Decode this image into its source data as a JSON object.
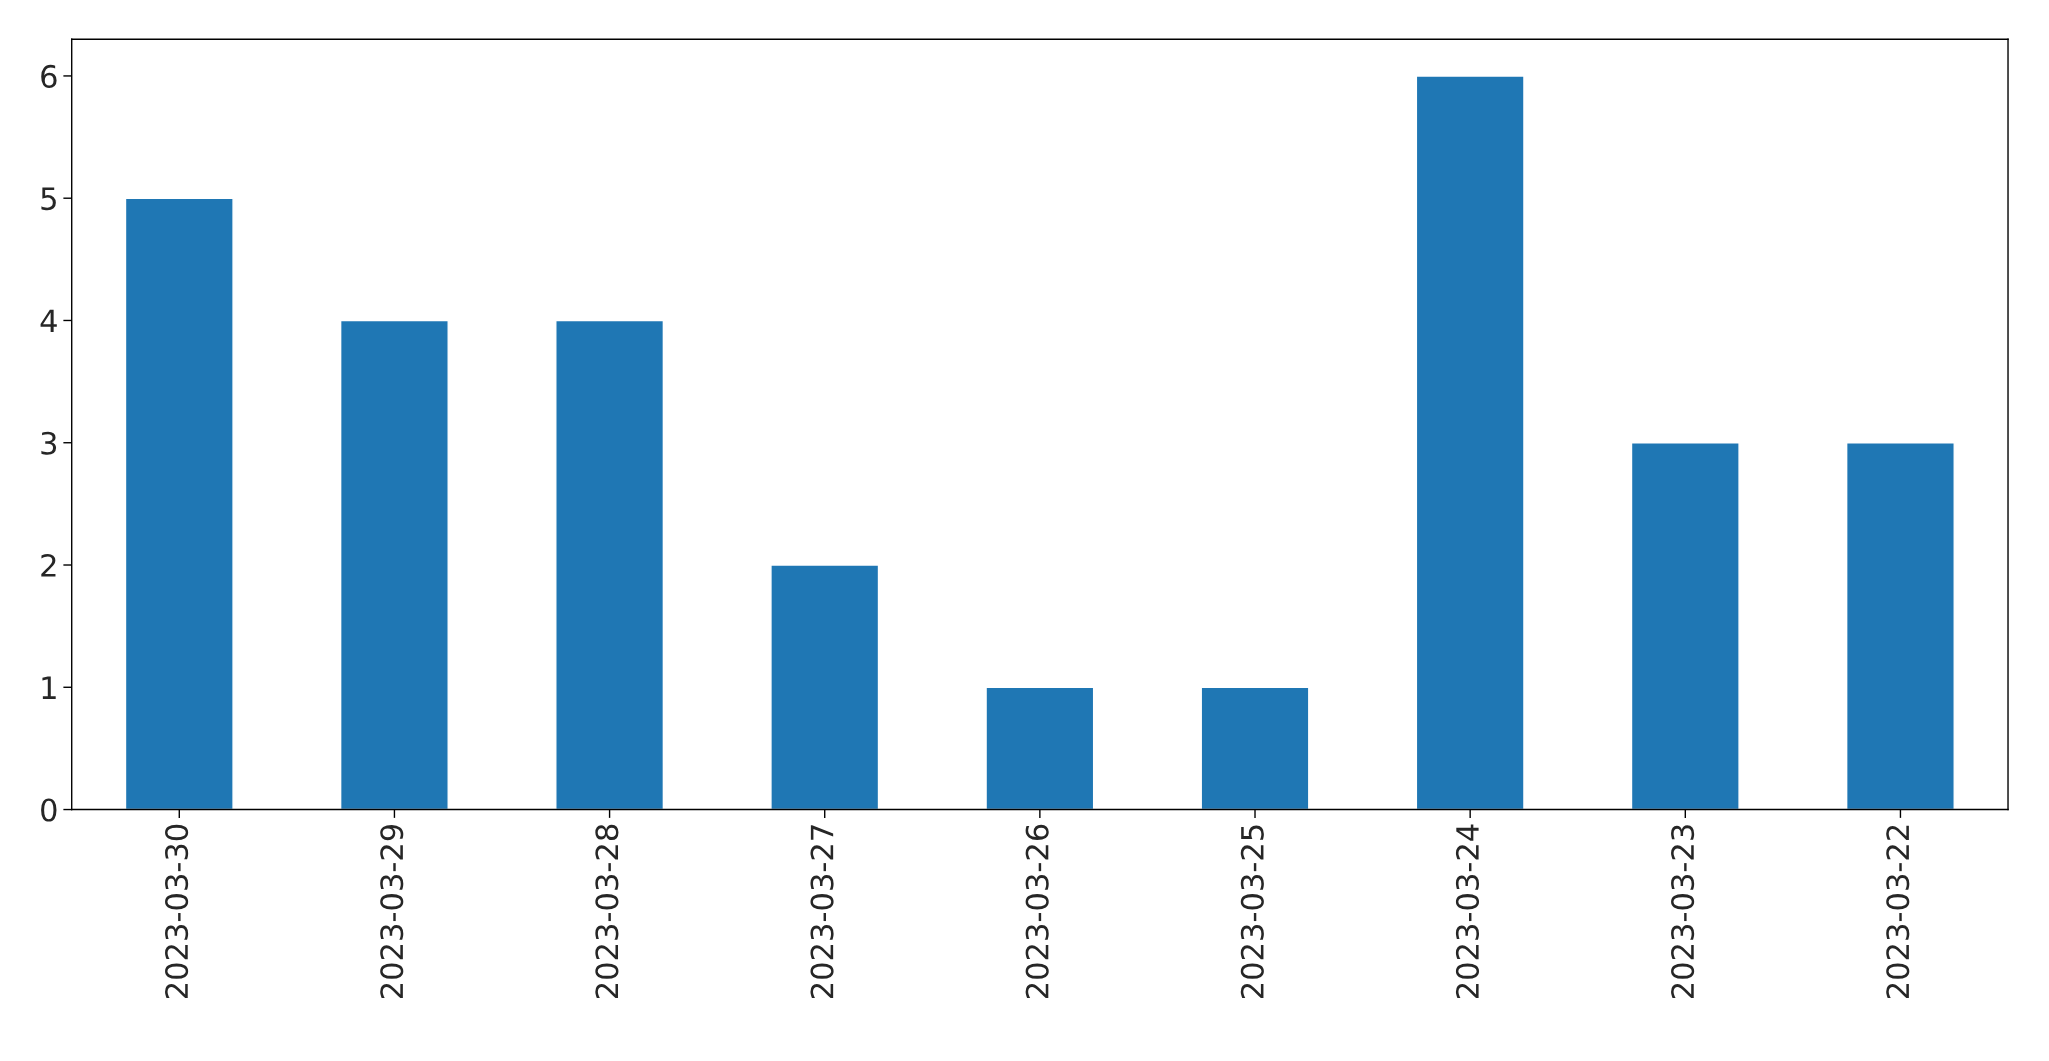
{
  "chart_data": {
    "type": "bar",
    "categories": [
      "2023-03-30",
      "2023-03-29",
      "2023-03-28",
      "2023-03-27",
      "2023-03-26",
      "2023-03-25",
      "2023-03-24",
      "2023-03-23",
      "2023-03-22"
    ],
    "values": [
      5,
      4,
      4,
      2,
      1,
      1,
      6,
      3,
      3
    ],
    "color": "#1f77b4",
    "ylim": [
      0,
      6.3
    ],
    "yticks": [
      0,
      1,
      2,
      3,
      4,
      5,
      6
    ],
    "grid": false
  }
}
